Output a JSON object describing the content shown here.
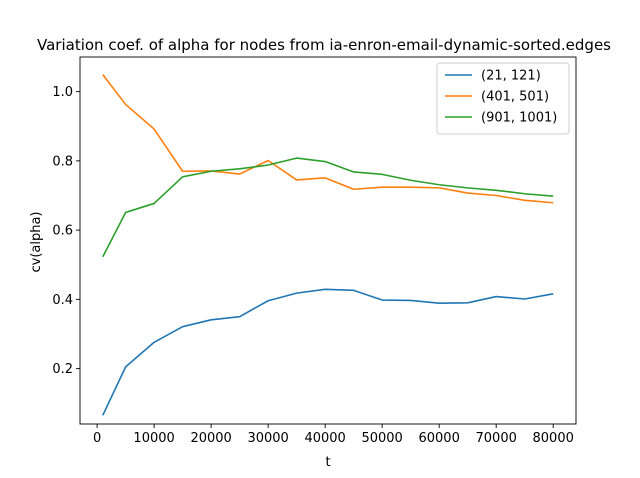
{
  "chart_data": {
    "type": "line",
    "title": "Variation coef. of alpha for nodes from ia-enron-email-dynamic-sorted.edges",
    "xlabel": "t",
    "ylabel": "cv(alpha)",
    "xlim": [
      -3000,
      84000
    ],
    "ylim": [
      0.04,
      1.1
    ],
    "xticks": [
      0,
      10000,
      20000,
      30000,
      40000,
      50000,
      60000,
      70000,
      80000
    ],
    "yticks": [
      0.2,
      0.4,
      0.6,
      0.8,
      1.0
    ],
    "yticklabels": [
      "0.2",
      "0.4",
      "0.6",
      "0.8",
      "1.0"
    ],
    "grid": false,
    "legend_position": "top-right",
    "x": [
      1000,
      5000,
      10000,
      15000,
      20000,
      25000,
      30000,
      35000,
      40000,
      45000,
      50000,
      55000,
      60000,
      65000,
      70000,
      75000,
      80000
    ],
    "series": [
      {
        "name": "(21, 121)",
        "color": "#1f77b4",
        "values": [
          0.065,
          0.205,
          0.276,
          0.321,
          0.341,
          0.35,
          0.396,
          0.418,
          0.429,
          0.426,
          0.398,
          0.397,
          0.389,
          0.39,
          0.408,
          0.401,
          0.416
        ]
      },
      {
        "name": "(401, 501)",
        "color": "#ff7f0e",
        "values": [
          1.049,
          0.963,
          0.892,
          0.77,
          0.771,
          0.762,
          0.801,
          0.745,
          0.751,
          0.718,
          0.724,
          0.724,
          0.722,
          0.707,
          0.7,
          0.686,
          0.679
        ]
      },
      {
        "name": "(901, 1001)",
        "color": "#2ca02c",
        "values": [
          0.523,
          0.651,
          0.677,
          0.754,
          0.77,
          0.777,
          0.788,
          0.808,
          0.798,
          0.768,
          0.761,
          0.744,
          0.731,
          0.722,
          0.715,
          0.705,
          0.698
        ]
      }
    ]
  }
}
